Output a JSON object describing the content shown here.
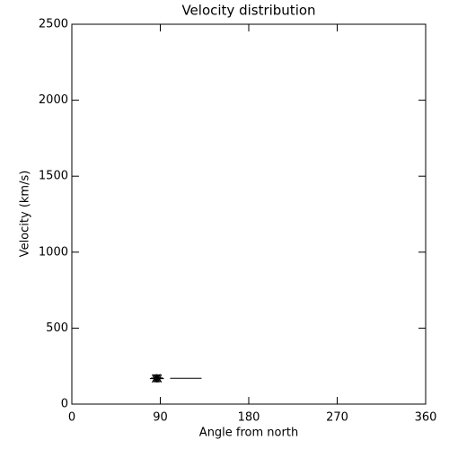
{
  "chart_data": {
    "type": "scatter",
    "title": "Velocity distribution",
    "x_label": "Angle from north",
    "y_label": "Velocity (km/s)",
    "xlim": [
      0,
      360
    ],
    "xticks": [
      0,
      90,
      180,
      270,
      360
    ],
    "ylim": [
      0,
      2500
    ],
    "yticks": [
      0,
      500,
      1000,
      1500,
      2000,
      2500
    ],
    "grid": false,
    "series": [
      {
        "color": "#000000",
        "style": "asterisk",
        "x": [
          84,
          85,
          86,
          87,
          88,
          89
        ],
        "values": [
          168,
          171,
          169,
          170,
          172,
          168
        ]
      },
      {
        "color": "#000000",
        "style": "line",
        "x": [
          100,
          132
        ],
        "values": [
          170,
          170
        ]
      }
    ]
  }
}
